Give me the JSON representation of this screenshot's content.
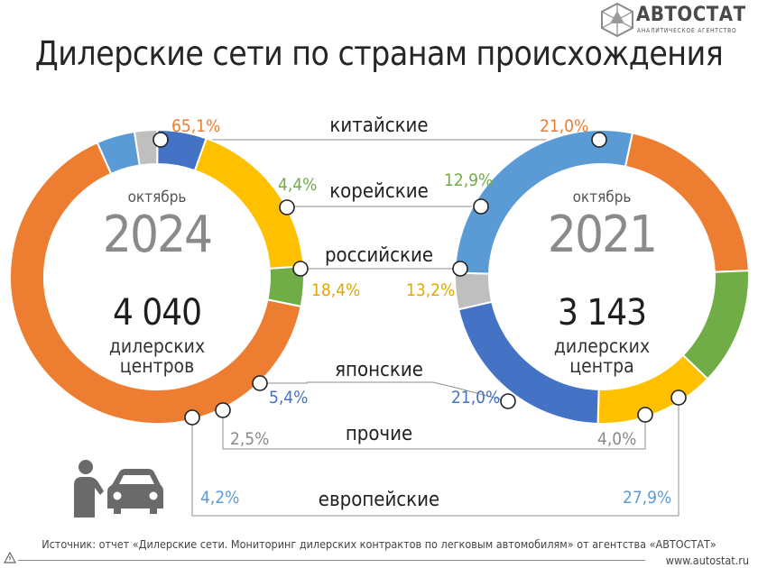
{
  "brand": {
    "name": "АВТОСТАТ",
    "tagline": "АНАЛИТИЧЕСКОЕ АГЕНТСТВО",
    "site": "www.autostat.ru"
  },
  "title": "Дилерские сети по странам происхождения",
  "source": "Источник: отчет «Дилерские сети. Мониторинг дилерских контрактов по легковым автомобилям» от агентства «АВТОСТАТ»",
  "colors": {
    "китайские": "#ED7D31",
    "корейские": "#70AD47",
    "российские": "#FFC000",
    "японские": "#4472C4",
    "прочие": "#BFBFBF",
    "европейские": "#5B9BD5"
  },
  "left": {
    "month": "октябрь",
    "year": "2024",
    "count": "4 040",
    "count_label_1": "дилерских",
    "count_label_2": "центров"
  },
  "right": {
    "month": "октябрь",
    "year": "2021",
    "count": "3 143",
    "count_label_1": "дилерских",
    "count_label_2": "центра"
  },
  "chart_data": {
    "type": "donut-comparison",
    "categories": [
      "китайские",
      "корейские",
      "российские",
      "японские",
      "прочие",
      "европейские"
    ],
    "series": [
      {
        "name": "2024",
        "values": [
          65.1,
          4.4,
          18.4,
          5.4,
          2.5,
          4.2
        ],
        "labels": [
          "65,1%",
          "4,4%",
          "18,4%",
          "5,4%",
          "2,5%",
          "4,2%"
        ]
      },
      {
        "name": "2021",
        "values": [
          21.0,
          12.9,
          13.2,
          21.0,
          4.0,
          27.9
        ],
        "labels": [
          "21,0%",
          "12,9%",
          "13,2%",
          "21,0%",
          "4,0%",
          "27,9%"
        ]
      }
    ]
  },
  "icons": {
    "logo": "autostat-logo-icon",
    "dealer": "dealer-with-car-icon"
  }
}
